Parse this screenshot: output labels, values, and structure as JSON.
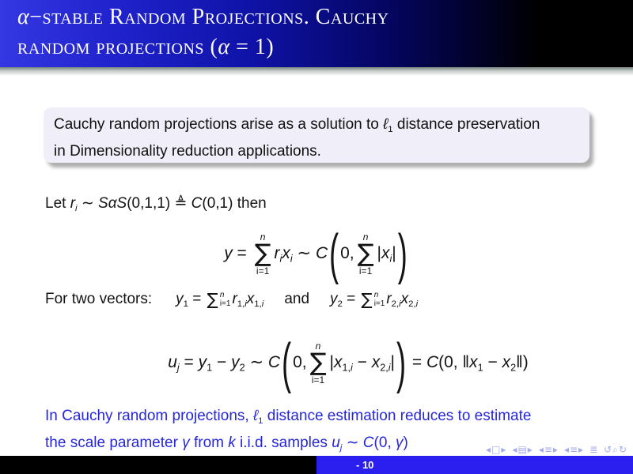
{
  "title": {
    "l1a": "α",
    "l1b": "−stable Random Projections. Cauchy",
    "l2a": "random projections (",
    "l2b": "α",
    "l2c": " = 1)"
  },
  "block_text": [
    {
      "t": "Cauchy random projections arise as a solution to ",
      "c": "up"
    },
    {
      "t": "ℓ",
      "c": "it"
    },
    {
      "t": "1",
      "c": "sub"
    },
    {
      "t": " distance preservation",
      "c": "up"
    },
    {
      "type": "br"
    },
    {
      "t": "in Dimensionality reduction applications.",
      "c": "up"
    }
  ],
  "let_line": [
    {
      "t": "Let ",
      "c": "up"
    },
    {
      "t": "r",
      "c": "it"
    },
    {
      "t": "i",
      "c": "sub it"
    },
    {
      "t": " ∼ ",
      "c": "up"
    },
    {
      "t": "SαS",
      "c": "it"
    },
    {
      "t": "(0,1,1) ",
      "c": "up"
    },
    {
      "t": "≜ ",
      "c": "up"
    },
    {
      "t": "C",
      "c": "it"
    },
    {
      "t": "(0,1)",
      "c": "up"
    },
    {
      "t": " then",
      "c": "up"
    }
  ],
  "formula1": [
    {
      "t": "y",
      "c": "it"
    },
    {
      "t": " = ",
      "c": "up"
    },
    {
      "type": "dsum",
      "sym": "∑",
      "top": "n",
      "bottom": "i=1"
    },
    {
      "t": "r",
      "c": "it"
    },
    {
      "t": "i",
      "c": "sub it"
    },
    {
      "t": "x",
      "c": "it"
    },
    {
      "t": "i",
      "c": "sub it"
    },
    {
      "t": " ∼ ",
      "c": "up"
    },
    {
      "t": "C",
      "c": "it"
    },
    {
      "t": "(",
      "c": "bigp"
    },
    {
      "t": "0,",
      "c": "up"
    },
    {
      "type": "dsum",
      "sym": "∑",
      "top": "n",
      "bottom": "i=1"
    },
    {
      "t": "|",
      "c": "up"
    },
    {
      "t": "x",
      "c": "it"
    },
    {
      "t": "i",
      "c": "sub it"
    },
    {
      "t": "|",
      "c": "up"
    },
    {
      "t": ")",
      "c": "bigp"
    }
  ],
  "vectors_line": [
    {
      "t": "For two vectors:",
      "c": "up"
    },
    {
      "type": "sp",
      "w": 30
    },
    {
      "t": "y",
      "c": "it"
    },
    {
      "t": "1",
      "c": "sub"
    },
    {
      "t": " = ",
      "c": "up"
    },
    {
      "type": "isum",
      "sym": "∑",
      "top": "n",
      "bottom": "i=1"
    },
    {
      "t": "r",
      "c": "it"
    },
    {
      "t": "1,",
      "c": "sub"
    },
    {
      "t": "i",
      "c": "sub it"
    },
    {
      "t": "x",
      "c": "it"
    },
    {
      "t": "1,",
      "c": "sub"
    },
    {
      "t": "i",
      "c": "sub it"
    },
    {
      "type": "sp",
      "w": 26
    },
    {
      "t": "and",
      "c": "up"
    },
    {
      "type": "sp",
      "w": 26
    },
    {
      "t": "y",
      "c": "it"
    },
    {
      "t": "2",
      "c": "sub"
    },
    {
      "t": " = ",
      "c": "up"
    },
    {
      "type": "isum",
      "sym": "∑",
      "top": "n",
      "bottom": "i=1"
    },
    {
      "t": "r",
      "c": "it"
    },
    {
      "t": "2,",
      "c": "sub"
    },
    {
      "t": "i",
      "c": "sub it"
    },
    {
      "t": "x",
      "c": "it"
    },
    {
      "t": "2,",
      "c": "sub"
    },
    {
      "t": "i",
      "c": "sub it"
    }
  ],
  "formula2": [
    {
      "t": "u",
      "c": "it"
    },
    {
      "t": "j",
      "c": "sub it"
    },
    {
      "t": " = ",
      "c": "up"
    },
    {
      "t": "y",
      "c": "it"
    },
    {
      "t": "1",
      "c": "sub"
    },
    {
      "t": " − ",
      "c": "up"
    },
    {
      "t": "y",
      "c": "it"
    },
    {
      "t": "2",
      "c": "sub"
    },
    {
      "t": " ∼ ",
      "c": "up"
    },
    {
      "t": "C",
      "c": "it"
    },
    {
      "t": "(",
      "c": "bigp"
    },
    {
      "t": "0,",
      "c": "up"
    },
    {
      "type": "dsum",
      "sym": "∑",
      "top": "n",
      "bottom": "i=1"
    },
    {
      "t": "|",
      "c": "up"
    },
    {
      "t": "x",
      "c": "it"
    },
    {
      "t": "1,",
      "c": "sub"
    },
    {
      "t": "i",
      "c": "sub it"
    },
    {
      "t": " − ",
      "c": "up"
    },
    {
      "t": "x",
      "c": "it"
    },
    {
      "t": "2,",
      "c": "sub"
    },
    {
      "t": "i",
      "c": "sub it"
    },
    {
      "t": "|",
      "c": "up"
    },
    {
      "t": ")",
      "c": "bigp"
    },
    {
      "t": " = ",
      "c": "up"
    },
    {
      "t": "C",
      "c": "it"
    },
    {
      "t": "(0, ",
      "c": "up"
    },
    {
      "t": "‖",
      "c": "up"
    },
    {
      "t": "x",
      "c": "it"
    },
    {
      "t": "1",
      "c": "sub"
    },
    {
      "t": " − ",
      "c": "up"
    },
    {
      "t": "x",
      "c": "it"
    },
    {
      "t": "2",
      "c": "sub"
    },
    {
      "t": "‖)",
      "c": "up"
    }
  ],
  "conclusion": [
    {
      "t": "In Cauchy random projections, ",
      "c": "up"
    },
    {
      "t": "ℓ",
      "c": "it"
    },
    {
      "t": "1",
      "c": "sub"
    },
    {
      "t": " distance estimation reduces to estimate",
      "c": "up"
    },
    {
      "type": "br"
    },
    {
      "t": "the scale parameter ",
      "c": "up"
    },
    {
      "t": "γ",
      "c": "it"
    },
    {
      "t": " from ",
      "c": "up"
    },
    {
      "t": "k",
      "c": "it"
    },
    {
      "t": " i.i.d. samples ",
      "c": "up"
    },
    {
      "t": "u",
      "c": "it"
    },
    {
      "t": "j",
      "c": "sub it"
    },
    {
      "t": " ∼ ",
      "c": "up"
    },
    {
      "t": "C",
      "c": "it"
    },
    {
      "t": "(0, ",
      "c": "up"
    },
    {
      "t": "γ",
      "c": "it"
    },
    {
      "t": ")",
      "c": "up"
    }
  ],
  "nav": {
    "icons": [
      {
        "g": "◂"
      },
      {
        "g": "□"
      },
      {
        "g": "▸"
      },
      {
        "g": "◂"
      },
      {
        "g": "▤"
      },
      {
        "g": "▸"
      },
      {
        "g": "◂"
      },
      {
        "g": "≡"
      },
      {
        "g": "▸"
      },
      {
        "g": "◂"
      },
      {
        "g": "≡"
      },
      {
        "g": "▸"
      },
      {
        "g": "≣"
      },
      {
        "g": "↺"
      },
      {
        "g": "⌕"
      },
      {
        "g": "↻"
      }
    ]
  },
  "footer": {
    "page_label": "- 10"
  },
  "colors": {
    "title_gradient_left": "#3438e2",
    "title_gradient_right": "#000000",
    "block_bg": "#f0eff9",
    "conclusion_text": "#2626dd",
    "footer_blue": "#2b1ff0",
    "footer_black": "#000000",
    "nav_icons": "#8c94e6"
  }
}
